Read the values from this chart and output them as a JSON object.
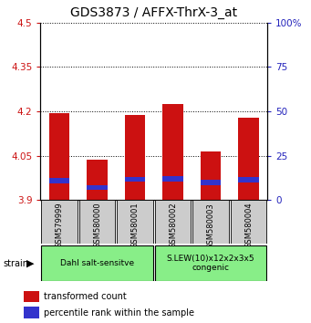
{
  "title": "GDS3873 / AFFX-ThrX-3_at",
  "categories": [
    "GSM579999",
    "GSM580000",
    "GSM580001",
    "GSM580002",
    "GSM580003",
    "GSM580004"
  ],
  "red_tops": [
    4.193,
    4.037,
    4.187,
    4.225,
    4.065,
    4.18
  ],
  "blue_bottoms": [
    3.958,
    3.935,
    3.962,
    3.963,
    3.95,
    3.96
  ],
  "blue_tops": [
    3.975,
    3.952,
    3.98,
    3.982,
    3.968,
    3.978
  ],
  "baseline": 3.9,
  "ylim_left": [
    3.9,
    4.5
  ],
  "ylim_right": [
    0,
    100
  ],
  "yticks_left": [
    3.9,
    4.05,
    4.2,
    4.35,
    4.5
  ],
  "yticks_right": [
    0,
    25,
    50,
    75,
    100
  ],
  "ytick_labels_left": [
    "3.9",
    "4.05",
    "4.2",
    "4.35",
    "4.5"
  ],
  "ytick_labels_right": [
    "0",
    "25",
    "50",
    "75",
    "100%"
  ],
  "red_color": "#cc1111",
  "blue_color": "#3333cc",
  "bar_width": 0.55,
  "group1_label": "Dahl salt-sensitve",
  "group2_label": "S.LEW(10)x12x2x3x5\ncongenic",
  "group1_indices": [
    0,
    1,
    2
  ],
  "group2_indices": [
    3,
    4,
    5
  ],
  "group_color": "#88ee88",
  "strain_label": "strain",
  "legend_red": "transformed count",
  "legend_blue": "percentile rank within the sample",
  "sample_bg_color": "#cccccc",
  "title_fontsize": 10,
  "axis_color_left": "#cc1111",
  "axis_color_right": "#2222bb"
}
